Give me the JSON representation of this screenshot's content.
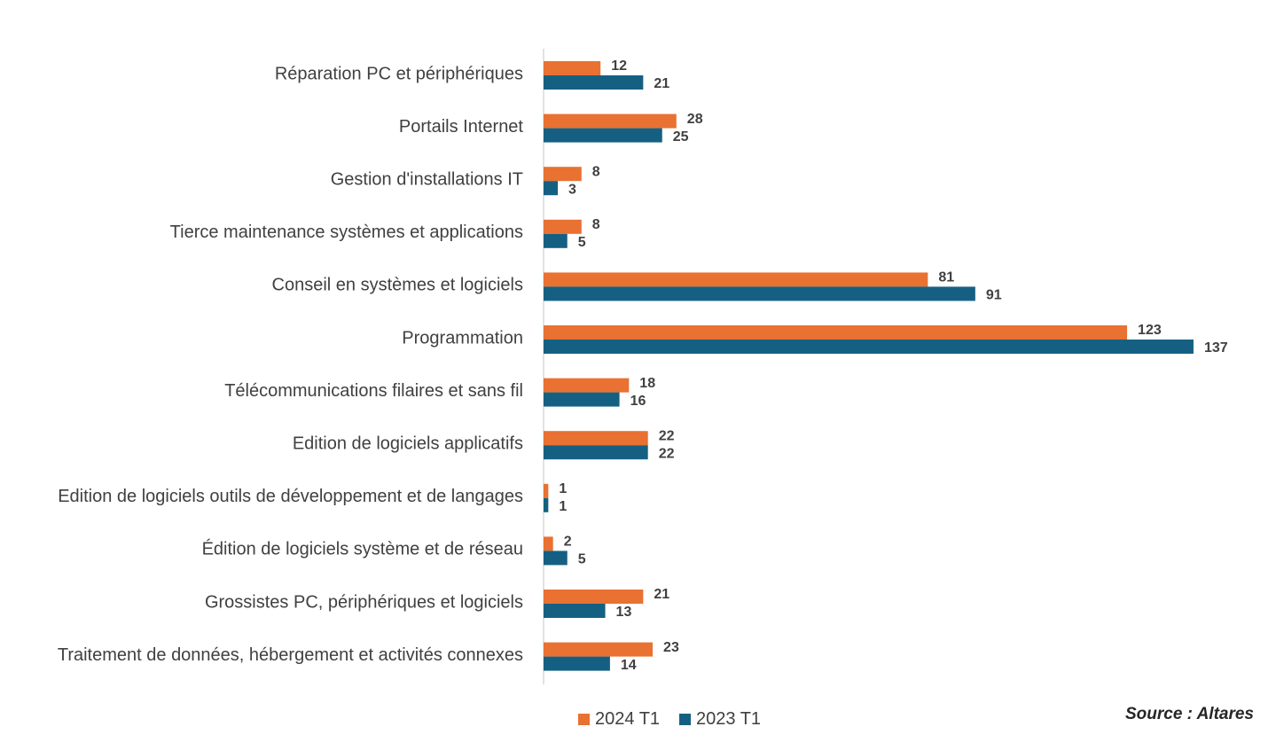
{
  "chart_data": {
    "type": "bar",
    "orientation": "horizontal",
    "categories": [
      "Réparation PC et périphériques",
      "Portails Internet",
      "Gestion d'installations IT",
      "Tierce maintenance  systèmes et applications",
      "Conseil en systèmes et logiciels",
      "Programmation",
      "Télécommunications filaires et sans fil",
      "Edition de logiciels applicatifs",
      "Edition de logiciels outils de développement et de langages",
      "Édition de logiciels système et de réseau",
      "Grossistes PC, périphériques et logiciels",
      "Traitement de données, hébergement et activités connexes"
    ],
    "series": [
      {
        "name": "2024 T1",
        "color": "#E97132",
        "values": [
          12,
          28,
          8,
          8,
          81,
          123,
          18,
          22,
          1,
          2,
          21,
          23
        ]
      },
      {
        "name": "2023 T1",
        "color": "#156082",
        "values": [
          21,
          25,
          3,
          5,
          91,
          137,
          16,
          22,
          1,
          5,
          13,
          14
        ]
      }
    ],
    "title": "",
    "xlabel": "",
    "ylabel": "",
    "xlim": [
      0,
      150
    ],
    "grid": false,
    "data_labels": true,
    "legend_position": "bottom"
  },
  "legend": {
    "items": [
      {
        "label": "2024 T1",
        "color": "#E97132"
      },
      {
        "label": "2023 T1",
        "color": "#156082"
      }
    ]
  },
  "source": {
    "text": "Source : Altares"
  }
}
